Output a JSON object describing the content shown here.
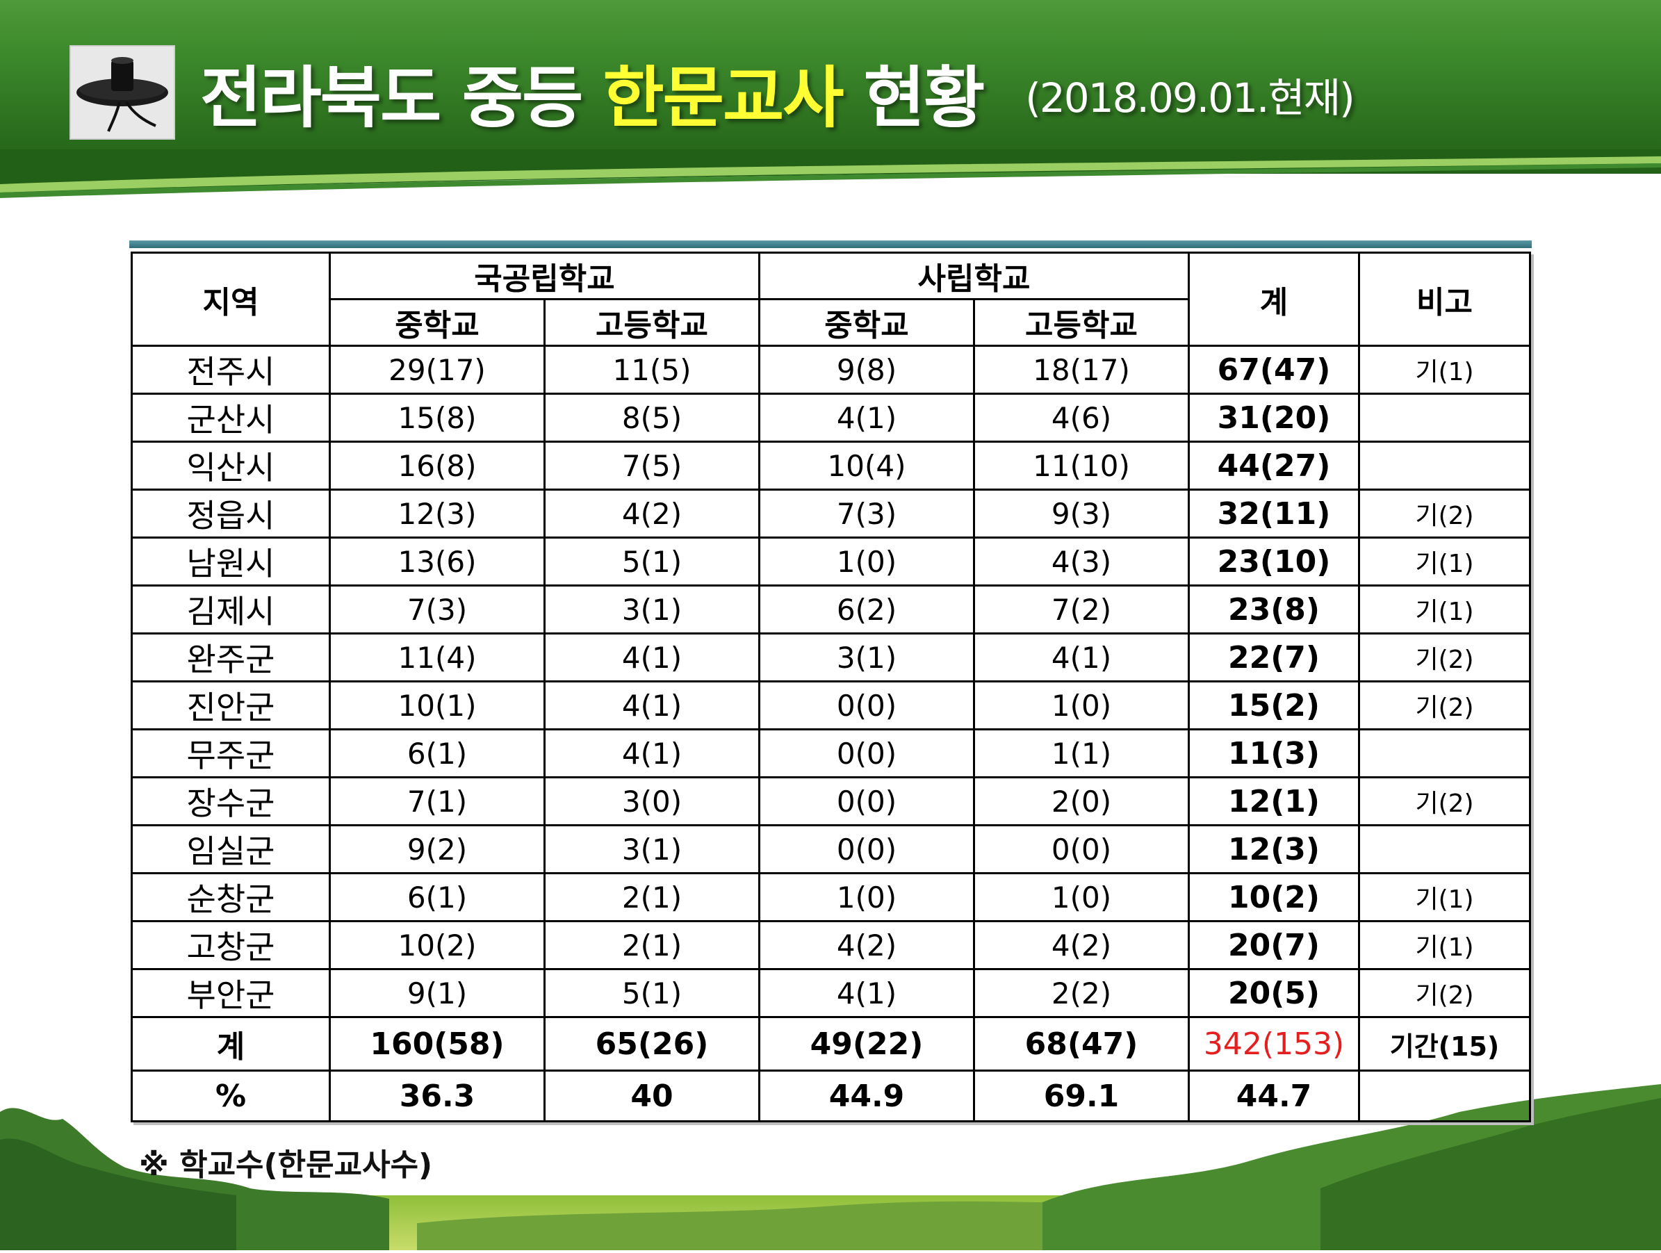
{
  "title": {
    "main": "전라북도 중등",
    "highlight": "한문교사",
    "suffix": "현황",
    "date": "(2018.09.01.현재)"
  },
  "table": {
    "headers": {
      "region": "지역",
      "public": "국공립학교",
      "private": "사립학교",
      "total": "계",
      "note": "비고",
      "middle": "중학교",
      "high": "고등학교"
    },
    "rows": [
      {
        "region": "전주시",
        "pub_mid": "29(17)",
        "pub_high": "11(5)",
        "pri_mid": "9(8)",
        "pri_high": "18(17)",
        "total": "67(47)",
        "note": "기(1)"
      },
      {
        "region": "군산시",
        "pub_mid": "15(8)",
        "pub_high": "8(5)",
        "pri_mid": "4(1)",
        "pri_high": "4(6)",
        "total": "31(20)",
        "note": ""
      },
      {
        "region": "익산시",
        "pub_mid": "16(8)",
        "pub_high": "7(5)",
        "pri_mid": "10(4)",
        "pri_high": "11(10)",
        "total": "44(27)",
        "note": ""
      },
      {
        "region": "정읍시",
        "pub_mid": "12(3)",
        "pub_high": "4(2)",
        "pri_mid": "7(3)",
        "pri_high": "9(3)",
        "total": "32(11)",
        "note": "기(2)"
      },
      {
        "region": "남원시",
        "pub_mid": "13(6)",
        "pub_high": "5(1)",
        "pri_mid": "1(0)",
        "pri_high": "4(3)",
        "total": "23(10)",
        "note": "기(1)"
      },
      {
        "region": "김제시",
        "pub_mid": "7(3)",
        "pub_high": "3(1)",
        "pri_mid": "6(2)",
        "pri_high": "7(2)",
        "total": "23(8)",
        "note": "기(1)"
      },
      {
        "region": "완주군",
        "pub_mid": "11(4)",
        "pub_high": "4(1)",
        "pri_mid": "3(1)",
        "pri_high": "4(1)",
        "total": "22(7)",
        "note": "기(2)"
      },
      {
        "region": "진안군",
        "pub_mid": "10(1)",
        "pub_high": "4(1)",
        "pri_mid": "0(0)",
        "pri_high": "1(0)",
        "total": "15(2)",
        "note": "기(2)"
      },
      {
        "region": "무주군",
        "pub_mid": "6(1)",
        "pub_high": "4(1)",
        "pri_mid": "0(0)",
        "pri_high": "1(1)",
        "total": "11(3)",
        "note": ""
      },
      {
        "region": "장수군",
        "pub_mid": "7(1)",
        "pub_high": "3(0)",
        "pri_mid": "0(0)",
        "pri_high": "2(0)",
        "total": "12(1)",
        "note": "기(2)"
      },
      {
        "region": "임실군",
        "pub_mid": "9(2)",
        "pub_high": "3(1)",
        "pri_mid": "0(0)",
        "pri_high": "0(0)",
        "total": "12(3)",
        "note": ""
      },
      {
        "region": "순창군",
        "pub_mid": "6(1)",
        "pub_high": "2(1)",
        "pri_mid": "1(0)",
        "pri_high": "1(0)",
        "total": "10(2)",
        "note": "기(1)"
      },
      {
        "region": "고창군",
        "pub_mid": "10(2)",
        "pub_high": "2(1)",
        "pri_mid": "4(2)",
        "pri_high": "4(2)",
        "total": "20(7)",
        "note": "기(1)"
      },
      {
        "region": "부안군",
        "pub_mid": "9(1)",
        "pub_high": "5(1)",
        "pri_mid": "4(1)",
        "pri_high": "2(2)",
        "total": "20(5)",
        "note": "기(2)"
      }
    ],
    "sum_row": {
      "region": "계",
      "pub_mid": "160(58)",
      "pub_high": "65(26)",
      "pri_mid": "49(22)",
      "pri_high": "68(47)",
      "total": "342(153)",
      "note": "기간(15)"
    },
    "pct_row": {
      "region": "%",
      "pub_mid": "36.3",
      "pub_high": "40",
      "pri_mid": "44.9",
      "pri_high": "69.1",
      "total": "44.7",
      "note": ""
    }
  },
  "footnote": "※ 학교수(한문교사수)",
  "colors": {
    "header_green": "#2f7421",
    "highlight_yellow": "#ffff33",
    "grand_total_red": "#e41f1f",
    "table_top_line": "#2f6d7a"
  },
  "icons": {
    "logo": "gat-hat-icon"
  }
}
